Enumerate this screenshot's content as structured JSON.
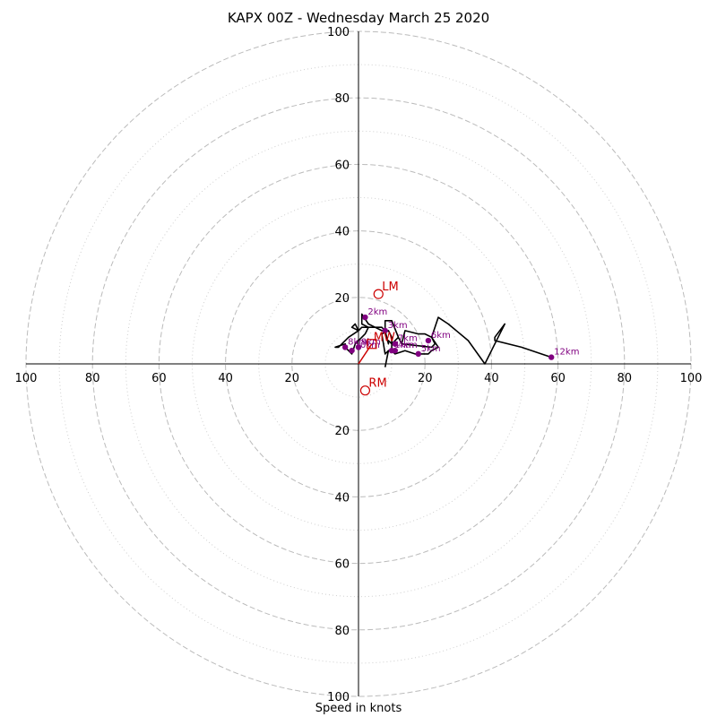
{
  "chart_data": {
    "type": "scatter",
    "subtype": "hodograph",
    "title": "KAPX 00Z - Wednesday March 25 2020",
    "xlabel": "Speed in knots",
    "ylabel": "",
    "xlim": [
      -100,
      100
    ],
    "ylim": [
      -100,
      100
    ],
    "ring_labels": [
      100,
      80,
      60,
      40,
      20,
      20,
      40,
      60,
      80,
      100
    ],
    "ring_label_values": [
      -100,
      -80,
      -60,
      -40,
      -20,
      20,
      40,
      60,
      80,
      100
    ],
    "rings_major": [
      20,
      40,
      60,
      80,
      100
    ],
    "rings_minor": [
      10,
      30,
      50,
      70,
      90
    ],
    "grid": true,
    "colors": {
      "trace": "#000000",
      "height_marker": "#800080",
      "motion": "#cc0000",
      "grid": "#bbbbbb"
    },
    "trace": [
      [
        8,
        -1
      ],
      [
        9,
        4
      ],
      [
        8,
        3
      ],
      [
        7,
        9
      ],
      [
        9,
        10
      ],
      [
        10,
        8
      ],
      [
        10,
        6
      ],
      [
        9,
        7
      ],
      [
        9,
        6
      ],
      [
        8,
        10
      ],
      [
        7,
        11
      ],
      [
        1,
        11
      ],
      [
        0,
        10
      ],
      [
        -1,
        12
      ],
      [
        -2,
        11
      ],
      [
        0,
        10
      ],
      [
        -3,
        8
      ],
      [
        -6,
        5
      ],
      [
        -7,
        5
      ],
      [
        -4,
        6
      ],
      [
        -4,
        5
      ],
      [
        -2,
        3
      ],
      [
        -1,
        6
      ],
      [
        1,
        8
      ],
      [
        2,
        9
      ],
      [
        3,
        11
      ],
      [
        1,
        12
      ],
      [
        1,
        15
      ],
      [
        3,
        12
      ],
      [
        5,
        11
      ],
      [
        7,
        10
      ],
      [
        8,
        10
      ],
      [
        8,
        13
      ],
      [
        10,
        13
      ],
      [
        12,
        8
      ],
      [
        13,
        6
      ],
      [
        14,
        10
      ],
      [
        18,
        9
      ],
      [
        20,
        9
      ],
      [
        22,
        8
      ],
      [
        23,
        6
      ],
      [
        22,
        5
      ],
      [
        13,
        6
      ],
      [
        12,
        8
      ],
      [
        10,
        6
      ],
      [
        10,
        4
      ],
      [
        11,
        3
      ],
      [
        14,
        4
      ],
      [
        17,
        3
      ],
      [
        19,
        3
      ],
      [
        21,
        3
      ],
      [
        22,
        4
      ],
      [
        24,
        5
      ],
      [
        22,
        8
      ],
      [
        24,
        14
      ],
      [
        27,
        12
      ],
      [
        33,
        7
      ],
      [
        38,
        0
      ],
      [
        41,
        6
      ],
      [
        42,
        8
      ],
      [
        44,
        12
      ],
      [
        41,
        8
      ],
      [
        41,
        7
      ],
      [
        49,
        5
      ],
      [
        55,
        3
      ],
      [
        58,
        2
      ]
    ],
    "height_markers": [
      {
        "label": "1km",
        "u": 10,
        "v": 4
      },
      {
        "label": "2km",
        "u": 2,
        "v": 14
      },
      {
        "label": "3km",
        "u": 8,
        "v": 10
      },
      {
        "label": "4km",
        "u": 11,
        "v": 4
      },
      {
        "label": "5km",
        "u": 18,
        "v": 3
      },
      {
        "label": "6km",
        "u": 21,
        "v": 7
      },
      {
        "label": "7km",
        "u": 11,
        "v": 6
      },
      {
        "label": "8km",
        "u": -4,
        "v": 5
      },
      {
        "label": "9km",
        "u": 0,
        "v": 5
      },
      {
        "label": "10km",
        "u": -2,
        "v": 4
      },
      {
        "label": "12km",
        "u": 58,
        "v": 2
      }
    ],
    "storm_motion": {
      "mw": {
        "label": "MW",
        "u": 4,
        "v": 6
      },
      "lm": {
        "label": "LM",
        "u": 6,
        "v": 21
      },
      "rm": {
        "label": "RM",
        "u": 2,
        "v": -8
      }
    }
  }
}
